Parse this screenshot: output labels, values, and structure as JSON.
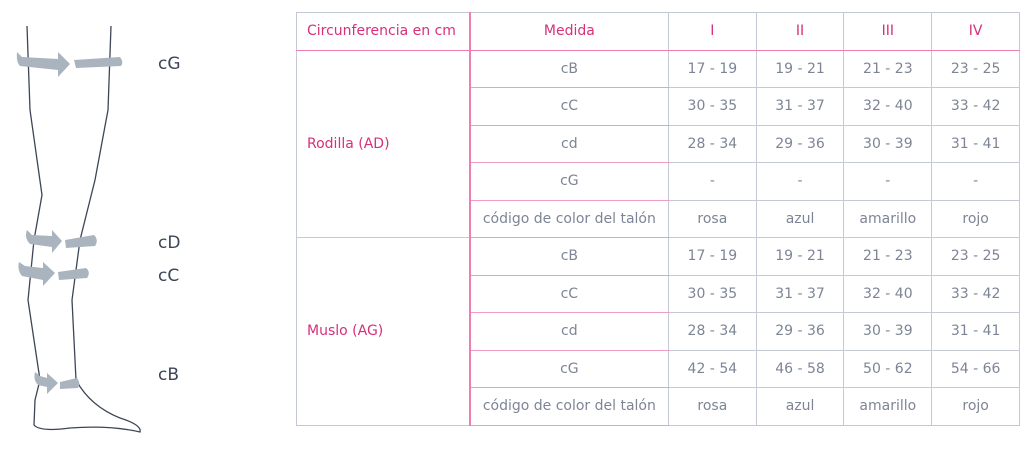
{
  "diagram": {
    "labels": {
      "cG": "cG",
      "cD": "cD",
      "cC": "cC",
      "cB": "cB"
    },
    "arrow_color": "#a9b4be",
    "outline_color": "#3c4656"
  },
  "table": {
    "headers": [
      "Circunferencia en cm",
      "Medida",
      "I",
      "II",
      "III",
      "IV"
    ],
    "groups": [
      {
        "name": "Rodilla (AD)",
        "rows": [
          {
            "measure": "cB",
            "values": [
              "17 - 19",
              "19 - 21",
              "21 - 23",
              "23 - 25"
            ]
          },
          {
            "measure": "cC",
            "values": [
              "30 - 35",
              "31 - 37",
              "32 - 40",
              "33 - 42"
            ]
          },
          {
            "measure": "cd",
            "values": [
              "28 - 34",
              "29 - 36",
              "30 - 39",
              "31 - 41"
            ]
          },
          {
            "measure": "cG",
            "values": [
              "-",
              "-",
              "-",
              "-"
            ]
          },
          {
            "measure": "código de color del talón",
            "values": [
              "rosa",
              "azul",
              "amarillo",
              "rojo"
            ]
          }
        ]
      },
      {
        "name": "Muslo (AG)",
        "rows": [
          {
            "measure": "cB",
            "values": [
              "17 - 19",
              "19 - 21",
              "21 - 23",
              "23 - 25"
            ]
          },
          {
            "measure": "cC",
            "values": [
              "30 - 35",
              "31 - 37",
              "32 - 40",
              "33 - 42"
            ]
          },
          {
            "measure": "cd",
            "values": [
              "28 - 34",
              "29 - 36",
              "30 - 39",
              "31 - 41"
            ]
          },
          {
            "measure": "cG",
            "values": [
              "42 - 54",
              "46 - 58",
              "50 - 62",
              "54 - 66"
            ]
          },
          {
            "measure": "código de color del talón",
            "values": [
              "rosa",
              "azul",
              "amarillo",
              "rojo"
            ]
          }
        ]
      }
    ],
    "accent_color": "#d6307a"
  }
}
